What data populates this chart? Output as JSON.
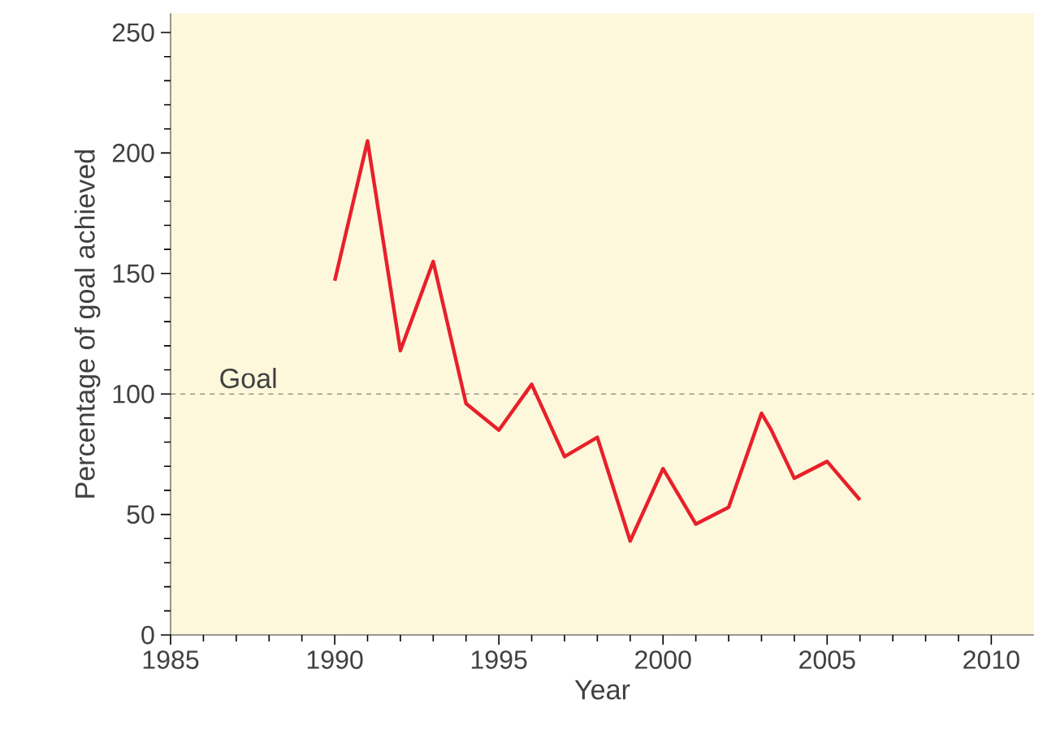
{
  "chart_data": {
    "type": "line",
    "xlabel": "Year",
    "ylabel": "Percentage of goal achieved",
    "x": [
      1990,
      1991,
      1992,
      1993,
      1994,
      1995,
      1996,
      1997,
      1998,
      1999,
      2000,
      2001,
      2002,
      2003,
      2003.3,
      2004,
      2005,
      2006
    ],
    "series": [
      {
        "color": "#e8202a",
        "values": [
          147,
          205,
          118,
          155,
          96,
          85,
          104,
          74,
          82,
          39,
          69,
          46,
          53,
          92,
          85,
          65,
          72,
          56
        ]
      }
    ],
    "xlim": [
      1985,
      2011.3
    ],
    "ylim": [
      0,
      258
    ],
    "xticks": [
      1985,
      1990,
      1995,
      2000,
      2005,
      2010
    ],
    "yticks": [
      0,
      50,
      100,
      150,
      200,
      250
    ],
    "ref_lines": [
      {
        "axis": "y",
        "value": 100,
        "label": "Goal",
        "color": "#404040",
        "line_style": "dashed"
      }
    ],
    "marker": "none",
    "line_style": "solid"
  }
}
